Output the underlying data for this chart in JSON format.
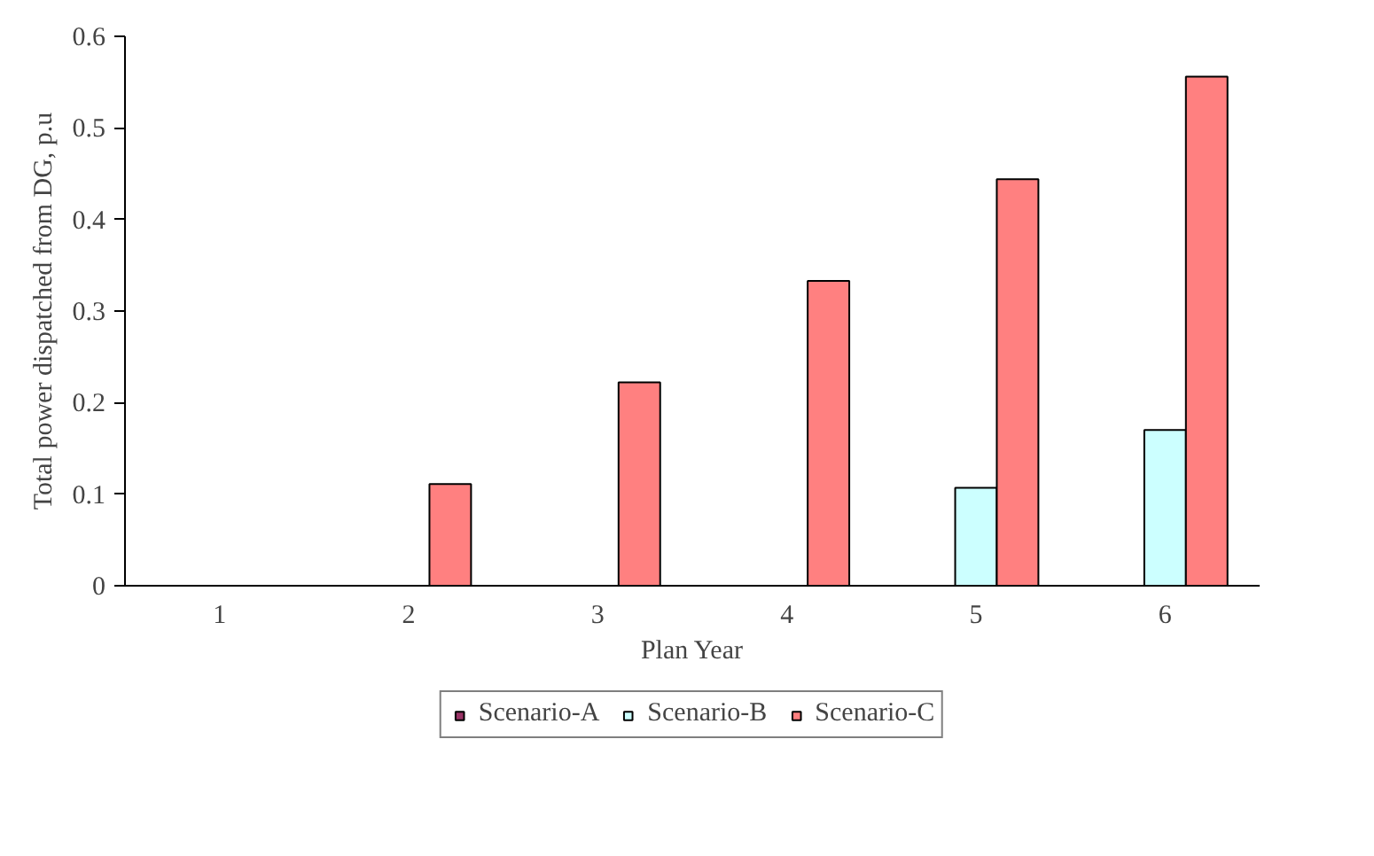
{
  "chart_data": {
    "type": "bar",
    "xlabel": "Plan Year",
    "ylabel": "Total power dispatched from DG, p.u",
    "categories": [
      "1",
      "2",
      "3",
      "4",
      "5",
      "6"
    ],
    "series": [
      {
        "name": "Scenario-A",
        "color": "#993366",
        "values": [
          0,
          0,
          0,
          0,
          0,
          0
        ]
      },
      {
        "name": "Scenario-B",
        "color": "#ccffff",
        "values": [
          0,
          0,
          0,
          0,
          0.107,
          0.17
        ]
      },
      {
        "name": "Scenario-C",
        "color": "#ff8080",
        "values": [
          0,
          0.111,
          0.222,
          0.333,
          0.444,
          0.556
        ]
      }
    ],
    "ylim": [
      0,
      0.6
    ],
    "yticks": [
      0,
      0.1,
      0.2,
      0.3,
      0.4,
      0.5,
      0.6
    ],
    "grid": false,
    "legend": "bottom"
  }
}
